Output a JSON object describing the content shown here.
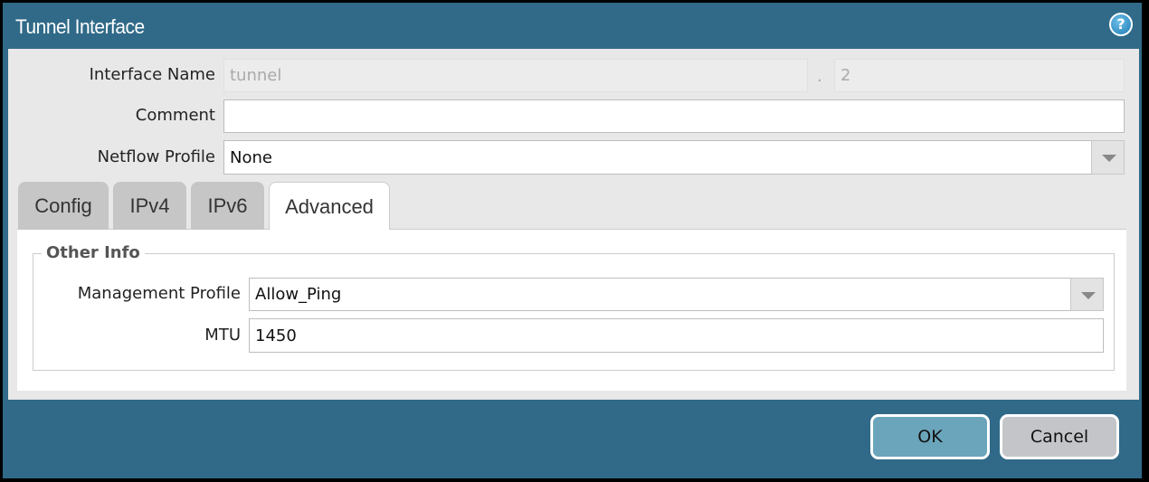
{
  "dialog": {
    "title": "Tunnel Interface",
    "help_icon": "help-icon"
  },
  "fields": {
    "interface_name": {
      "label": "Interface Name",
      "value": "tunnel",
      "separator": ".",
      "suffix": "2"
    },
    "comment": {
      "label": "Comment",
      "value": ""
    },
    "netflow_profile": {
      "label": "Netflow Profile",
      "value": "None"
    }
  },
  "tabs": [
    {
      "label": "Config"
    },
    {
      "label": "IPv4"
    },
    {
      "label": "IPv6"
    },
    {
      "label": "Advanced",
      "active": true
    }
  ],
  "advanced": {
    "group_title": "Other Info",
    "management_profile": {
      "label": "Management Profile",
      "value": "Allow_Ping"
    },
    "mtu": {
      "label": "MTU",
      "value": "1450"
    }
  },
  "buttons": {
    "ok": "OK",
    "cancel": "Cancel"
  },
  "colors": {
    "titlebar": "#306a88",
    "ok": "#6aa5bb",
    "cancel": "#c3c5c8"
  }
}
